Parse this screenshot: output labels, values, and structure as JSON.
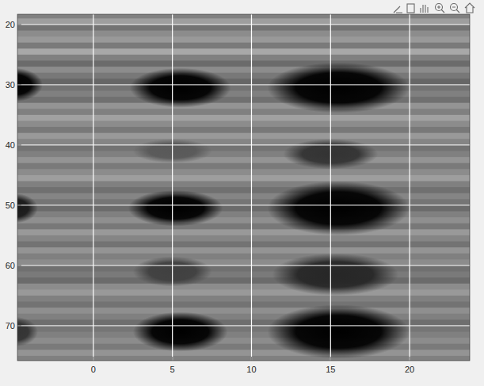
{
  "chart_data": {
    "type": "image",
    "xlim": [
      -4.8,
      23.8
    ],
    "ylim": [
      75.8,
      18.3
    ],
    "xticks": [
      0,
      5,
      10,
      15,
      20
    ],
    "yticks": [
      20,
      30,
      40,
      50,
      60,
      70
    ],
    "grid": true,
    "clim": [
      0,
      1
    ],
    "rows": {
      "y": [
        18.5,
        19.5,
        20.5,
        21.5,
        22.5,
        23.5,
        24.5,
        25.5,
        26.5,
        27.5,
        28.5,
        29.5,
        30.5,
        31.5,
        32.5,
        33.5,
        34.5,
        35.5,
        36.5,
        37.5,
        38.5,
        39.5,
        40.5,
        41.5,
        42.5,
        43.5,
        44.5,
        45.5,
        46.5,
        47.5,
        48.5,
        49.5,
        50.5,
        51.5,
        52.5,
        53.5,
        54.5,
        55.5,
        56.5,
        57.5,
        58.5,
        59.5,
        60.5,
        61.5,
        62.5,
        63.5,
        64.5,
        65.5,
        66.5,
        67.5,
        68.5,
        69.5,
        70.5,
        71.5,
        72.5,
        73.5,
        74.5,
        75.5
      ],
      "values": [
        0.5,
        0.62,
        0.45,
        0.55,
        0.6,
        0.48,
        0.66,
        0.5,
        0.42,
        0.55,
        0.47,
        0.4,
        0.45,
        0.5,
        0.44,
        0.58,
        0.5,
        0.63,
        0.55,
        0.47,
        0.6,
        0.52,
        0.45,
        0.5,
        0.58,
        0.48,
        0.55,
        0.62,
        0.5,
        0.44,
        0.52,
        0.46,
        0.42,
        0.5,
        0.56,
        0.47,
        0.6,
        0.52,
        0.45,
        0.58,
        0.5,
        0.55,
        0.44,
        0.48,
        0.42,
        0.55,
        0.6,
        0.5,
        0.45,
        0.56,
        0.5,
        0.43,
        0.46,
        0.5,
        0.55,
        0.48,
        0.58,
        0.5
      ]
    },
    "blobs": [
      {
        "x": -5,
        "y": 30,
        "rx": 1.8,
        "ry": 2.8,
        "value": 0
      },
      {
        "x": 5.5,
        "y": 30.5,
        "rx": 3.2,
        "ry": 3.3,
        "value": 0
      },
      {
        "x": 15.5,
        "y": 30.5,
        "rx": 4.5,
        "ry": 4.2,
        "value": 0
      },
      {
        "x": 15,
        "y": 41.5,
        "rx": 3,
        "ry": 2.5,
        "value": 0.2
      },
      {
        "x": 5,
        "y": 41,
        "rx": 2.5,
        "ry": 2,
        "value": 0.35
      },
      {
        "x": 5.2,
        "y": 50.5,
        "rx": 3,
        "ry": 3,
        "value": 0
      },
      {
        "x": 15.5,
        "y": 50.5,
        "rx": 4.5,
        "ry": 4.5,
        "value": 0
      },
      {
        "x": -5,
        "y": 50.5,
        "rx": 1.5,
        "ry": 2.5,
        "value": 0.1
      },
      {
        "x": 5,
        "y": 61,
        "rx": 2.5,
        "ry": 2.5,
        "value": 0.25
      },
      {
        "x": 15.3,
        "y": 61.5,
        "rx": 4,
        "ry": 3.5,
        "value": 0.15
      },
      {
        "x": 5.5,
        "y": 71,
        "rx": 3,
        "ry": 3.3,
        "value": 0
      },
      {
        "x": 15.5,
        "y": 71,
        "rx": 4.5,
        "ry": 4.5,
        "value": 0
      },
      {
        "x": -5,
        "y": 71,
        "rx": 1.5,
        "ry": 2.5,
        "value": 0.2
      }
    ]
  }
}
